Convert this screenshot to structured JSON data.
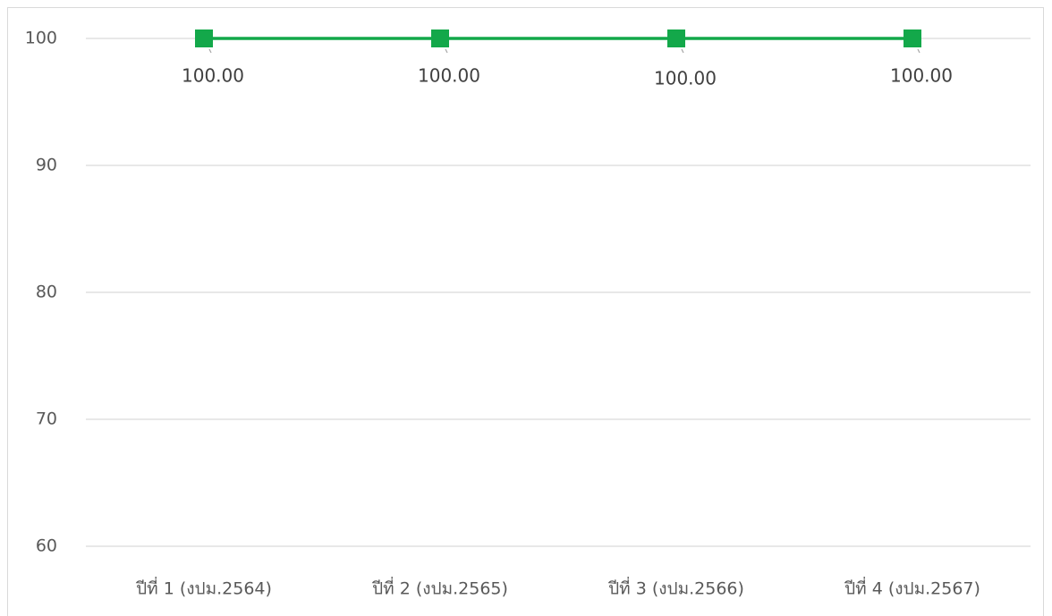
{
  "chart_data": {
    "type": "line",
    "categories": [
      "ปีที่ 1 (งปม.2564)",
      "ปีที่ 2 (งปม.2565)",
      "ปีที่ 3 (งปม.2566)",
      "ปีที่ 4 (งปม.2567)"
    ],
    "series": [
      {
        "color": "#13a84a",
        "values": [
          100,
          100,
          100,
          100
        ],
        "value_labels": [
          "100.00",
          "100.00",
          "100.00",
          "100.00"
        ]
      }
    ],
    "ylim": [
      60,
      100
    ],
    "yticks": [
      60,
      70,
      80,
      90,
      100
    ],
    "grid": true
  }
}
